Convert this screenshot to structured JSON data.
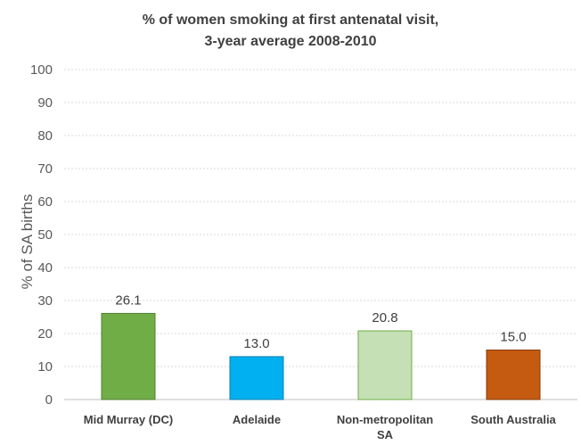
{
  "chart_data": {
    "type": "bar",
    "title_line1": "% of women smoking at first antenatal visit,",
    "title_line2": "3-year average 2008-2010",
    "ylabel": "% of SA births",
    "xlabel": "",
    "ylim": [
      0,
      100
    ],
    "yticks": [
      "0",
      "10",
      "20",
      "30",
      "40",
      "50",
      "60",
      "70",
      "80",
      "90",
      "100"
    ],
    "grid": true,
    "legend": "none",
    "categories": [
      {
        "label_lines": [
          "Mid Murray (DC)"
        ],
        "value": 26.1,
        "label": "26.1",
        "fill": "#70ad47",
        "stroke": "#507e32"
      },
      {
        "label_lines": [
          "Adelaide"
        ],
        "value": 13.0,
        "label": "13.0",
        "fill": "#00b0f0",
        "stroke": "#0f80b0"
      },
      {
        "label_lines": [
          "Non-metropolitan",
          "SA"
        ],
        "value": 20.8,
        "label": "20.8",
        "fill": "#c5e0b4",
        "stroke": "#70ad47"
      },
      {
        "label_lines": [
          "South Australia"
        ],
        "value": 15.0,
        "label": "15.0",
        "fill": "#c55a11",
        "stroke": "#843c0c"
      }
    ]
  }
}
